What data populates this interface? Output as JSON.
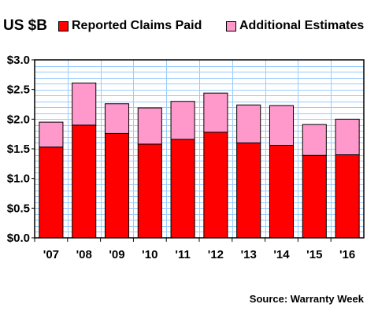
{
  "header": {
    "unit_label": "US $B"
  },
  "source_note": "Source: Warranty Week",
  "chart_data": {
    "type": "bar",
    "stacked": true,
    "categories": [
      "'07",
      "'08",
      "'09",
      "'10",
      "'11",
      "'12",
      "'13",
      "'14",
      "'15",
      "'16"
    ],
    "series": [
      {
        "name": "Reported Claims Paid",
        "color": "#ff0000",
        "values": [
          1.53,
          1.9,
          1.76,
          1.58,
          1.66,
          1.78,
          1.6,
          1.56,
          1.39,
          1.4
        ]
      },
      {
        "name": "Additional Estimates",
        "color": "#ff99cc",
        "values": [
          0.42,
          0.71,
          0.5,
          0.61,
          0.64,
          0.66,
          0.64,
          0.67,
          0.52,
          0.6
        ]
      }
    ],
    "y_ticks": [
      "$0.0",
      "$0.5",
      "$1.0",
      "$1.5",
      "$2.0",
      "$2.5",
      "$3.0"
    ],
    "ylim": [
      0,
      3.0
    ],
    "grid": true,
    "plot_background": "#ffffff",
    "grid_color": "#99ccff",
    "legend_position": "top"
  }
}
